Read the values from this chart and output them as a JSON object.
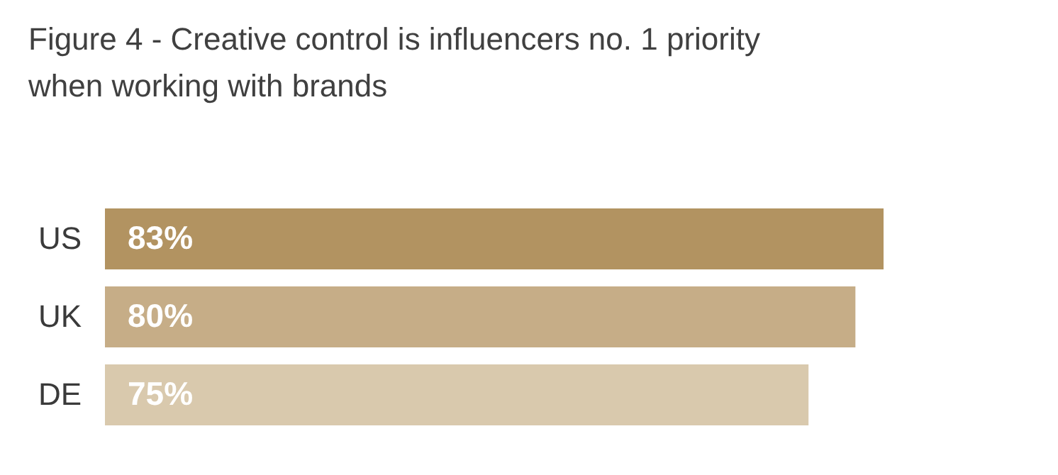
{
  "chart_data": {
    "type": "bar",
    "orientation": "horizontal",
    "tick_labels": "y",
    "title": [
      "Figure 4 - Creative control is influencers no. 1 priority",
      "when working with brands"
    ],
    "categories": [
      "US",
      "UK",
      "DE"
    ],
    "values": [
      83,
      80,
      75
    ],
    "value_labels": [
      "83%",
      "80%",
      "75%"
    ],
    "colors": [
      "#b29361",
      "#c6ad87",
      "#d9c9ad"
    ]
  }
}
